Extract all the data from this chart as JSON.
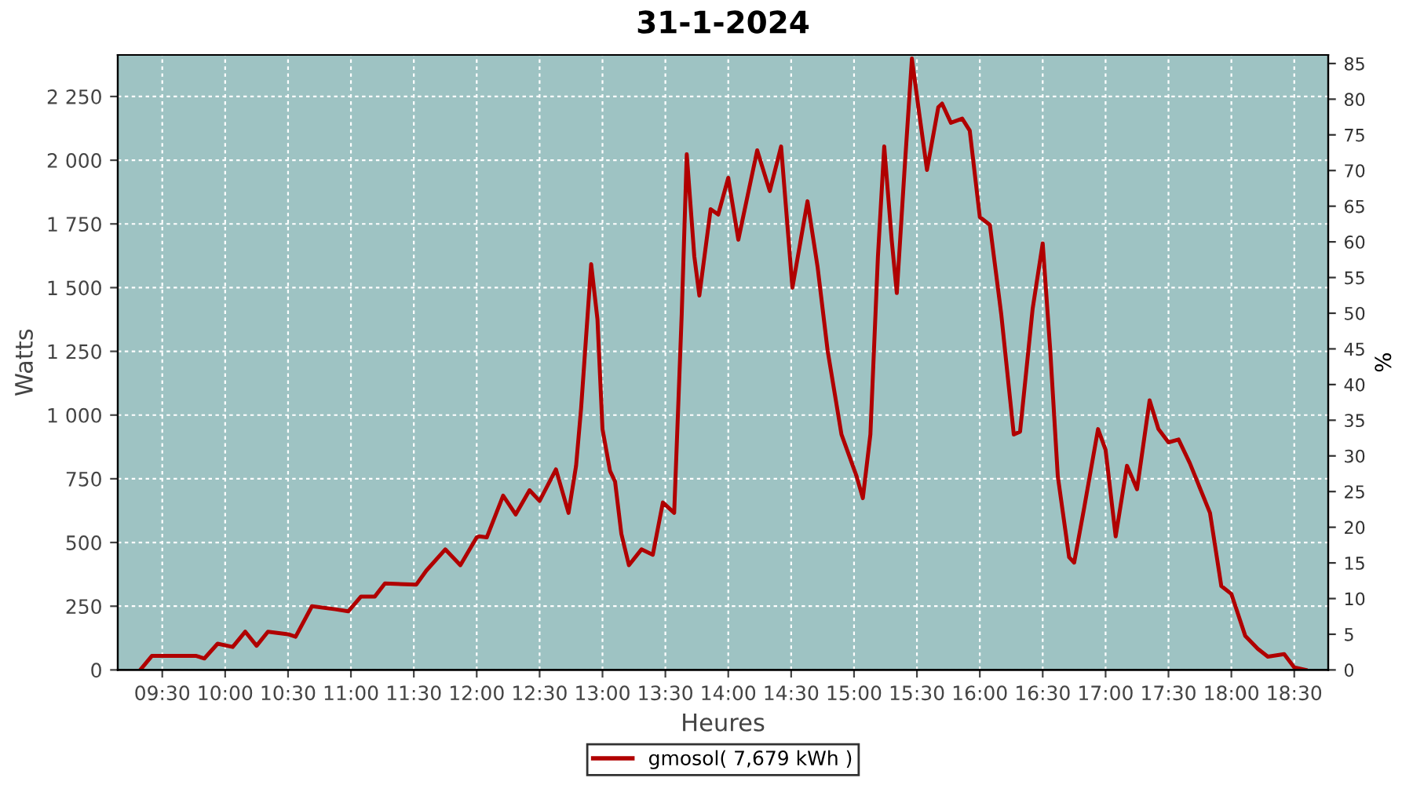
{
  "chart_data": {
    "type": "line",
    "title": "31-1-2024",
    "xlabel": "Heures",
    "ylabel": "Watts",
    "y2label": "%",
    "x": [
      9.325,
      9.417,
      9.771,
      9.835,
      9.94,
      10.06,
      10.16,
      10.25,
      10.34,
      10.5,
      10.56,
      10.69,
      10.875,
      10.98,
      11.08,
      11.19,
      11.27,
      11.52,
      11.6,
      11.75,
      11.87,
      12.0,
      12.02,
      12.08,
      12.21,
      12.31,
      12.42,
      12.5,
      12.63,
      12.73,
      12.79,
      12.83,
      12.91,
      12.96,
      13.0,
      13.06,
      13.1,
      13.15,
      13.21,
      13.31,
      13.4,
      13.48,
      13.57,
      13.63,
      13.67,
      13.73,
      13.77,
      13.86,
      13.92,
      14.0,
      14.08,
      14.23,
      14.33,
      14.42,
      14.51,
      14.63,
      14.71,
      14.79,
      14.9,
      15.02,
      15.07,
      15.13,
      15.19,
      15.24,
      15.3,
      15.34,
      15.4,
      15.46,
      15.52,
      15.58,
      15.67,
      15.7,
      15.77,
      15.86,
      15.92,
      16.0,
      16.08,
      16.17,
      16.27,
      16.32,
      16.42,
      16.5,
      16.56,
      16.62,
      16.71,
      16.75,
      16.83,
      16.94,
      17.0,
      17.08,
      17.17,
      17.25,
      17.35,
      17.42,
      17.5,
      17.58,
      17.67,
      17.83,
      17.92,
      18.0,
      18.11,
      18.21,
      18.29,
      18.42,
      18.5,
      18.59
    ],
    "series": [
      {
        "name": "gmosol( 7,679 kWh )",
        "color": "#b00000",
        "values": [
          0,
          55,
          55,
          45,
          103,
          90,
          150,
          95,
          150,
          140,
          130,
          250,
          238,
          230,
          288,
          288,
          339,
          335,
          390,
          473,
          411,
          520,
          524,
          520,
          684,
          610,
          705,
          663,
          787,
          616,
          801,
          1027,
          1592,
          1376,
          945,
          781,
          739,
          534,
          411,
          473,
          452,
          657,
          616,
          1397,
          2023,
          1623,
          1469,
          1808,
          1787,
          1931,
          1688,
          2039,
          1879,
          2054,
          1500,
          1839,
          1582,
          1253,
          924,
          760,
          674,
          924,
          1623,
          2054,
          1684,
          1479,
          1951,
          2399,
          2177,
          1962,
          2208,
          2222,
          2147,
          2163,
          2116,
          1777,
          1746,
          1397,
          924,
          935,
          1417,
          1674,
          1253,
          760,
          442,
          421,
          637,
          945,
          863,
          524,
          801,
          709,
          1058,
          945,
          893,
          904,
          811,
          616,
          329,
          298,
          134,
          83,
          52,
          62,
          10,
          0
        ]
      }
    ],
    "xlim": [
      9.146,
      18.77
    ],
    "xticks": [
      {
        "value": 9.5,
        "label": "09:30"
      },
      {
        "value": 10,
        "label": "10:00"
      },
      {
        "value": 10.5,
        "label": "10:30"
      },
      {
        "value": 11,
        "label": "11:00"
      },
      {
        "value": 11.5,
        "label": "11:30"
      },
      {
        "value": 12,
        "label": "12:00"
      },
      {
        "value": 12.5,
        "label": "12:30"
      },
      {
        "value": 13,
        "label": "13:00"
      },
      {
        "value": 13.5,
        "label": "13:30"
      },
      {
        "value": 14,
        "label": "14:00"
      },
      {
        "value": 14.5,
        "label": "14:30"
      },
      {
        "value": 15,
        "label": "15:00"
      },
      {
        "value": 15.5,
        "label": "15:30"
      },
      {
        "value": 16,
        "label": "16:00"
      },
      {
        "value": 16.5,
        "label": "16:30"
      },
      {
        "value": 17,
        "label": "17:00"
      },
      {
        "value": 17.5,
        "label": "17:30"
      },
      {
        "value": 18,
        "label": "18:00"
      },
      {
        "value": 18.5,
        "label": "18:30"
      }
    ],
    "ylim": [
      0,
      2413
    ],
    "yticks": [
      0,
      250,
      500,
      750,
      {
        "value": 1000,
        "label": "1 000"
      },
      {
        "value": 1250,
        "label": "1 250"
      },
      {
        "value": 1500,
        "label": "1 500"
      },
      {
        "value": 1750,
        "label": "1 750"
      },
      {
        "value": 2000,
        "label": "2 000"
      },
      {
        "value": 2250,
        "label": "2 250"
      }
    ],
    "y2lim": [
      0,
      86.2
    ],
    "y2ticks": [
      0,
      5,
      10,
      15,
      20,
      25,
      30,
      35,
      40,
      45,
      50,
      55,
      60,
      65,
      70,
      75,
      80,
      85
    ],
    "grid": true,
    "legend": "bottom",
    "marker": "none",
    "line_style": "solid"
  }
}
